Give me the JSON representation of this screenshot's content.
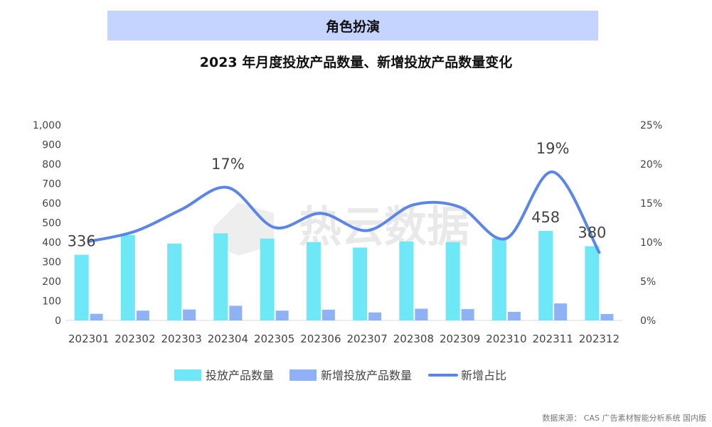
{
  "banner": {
    "text": "角色扮演"
  },
  "title": "2023 年月度投放产品数量、新增投放产品数量变化",
  "source": "数据来源： CAS 广告素材智能分析系统 国内版",
  "watermark": "热云数据",
  "colors": {
    "banner_bg": "#c5d3ff",
    "bar_total": "#6ee7f7",
    "bar_new": "#8fb2f7",
    "line": "#5b86e8"
  },
  "chart_data": {
    "type": "bar",
    "title": "2023 年月度投放产品数量、新增投放产品数量变化",
    "categories": [
      "202301",
      "202302",
      "202303",
      "202304",
      "202305",
      "202306",
      "202307",
      "202308",
      "202309",
      "202310",
      "202311",
      "202312"
    ],
    "series": [
      {
        "name": "投放产品数量",
        "type": "bar",
        "axis": "left",
        "values": [
          336,
          437,
          393,
          446,
          419,
          401,
          373,
          404,
          401,
          420,
          458,
          380
        ]
      },
      {
        "name": "新增投放产品数量",
        "type": "bar",
        "axis": "left",
        "values": [
          34,
          50,
          56,
          75,
          50,
          55,
          41,
          60,
          58,
          44,
          87,
          33
        ]
      },
      {
        "name": "新增占比",
        "type": "line",
        "axis": "right",
        "smooth": true,
        "values": [
          10.1,
          11.4,
          14.2,
          17.0,
          11.9,
          13.7,
          11.5,
          14.8,
          14.5,
          10.5,
          19.0,
          8.7
        ]
      }
    ],
    "data_labels": [
      {
        "series": "投放产品数量",
        "index": 0,
        "text": "336"
      },
      {
        "series": "新增占比",
        "index": 3,
        "text": "17%"
      },
      {
        "series": "新增占比",
        "index": 10,
        "text": "19%"
      },
      {
        "series": "投放产品数量",
        "index": 10,
        "text": "458"
      },
      {
        "series": "投放产品数量",
        "index": 11,
        "text": "380"
      }
    ],
    "y_left": {
      "ticks": [
        "0",
        "100",
        "200",
        "300",
        "400",
        "500",
        "600",
        "700",
        "800",
        "900",
        "1,000"
      ],
      "ylim": [
        0,
        1000
      ]
    },
    "y_right": {
      "ticks": [
        "0%",
        "5%",
        "10%",
        "15%",
        "20%",
        "25%"
      ],
      "ylim": [
        0,
        25
      ]
    },
    "grid": false,
    "legend_position": "bottom"
  }
}
